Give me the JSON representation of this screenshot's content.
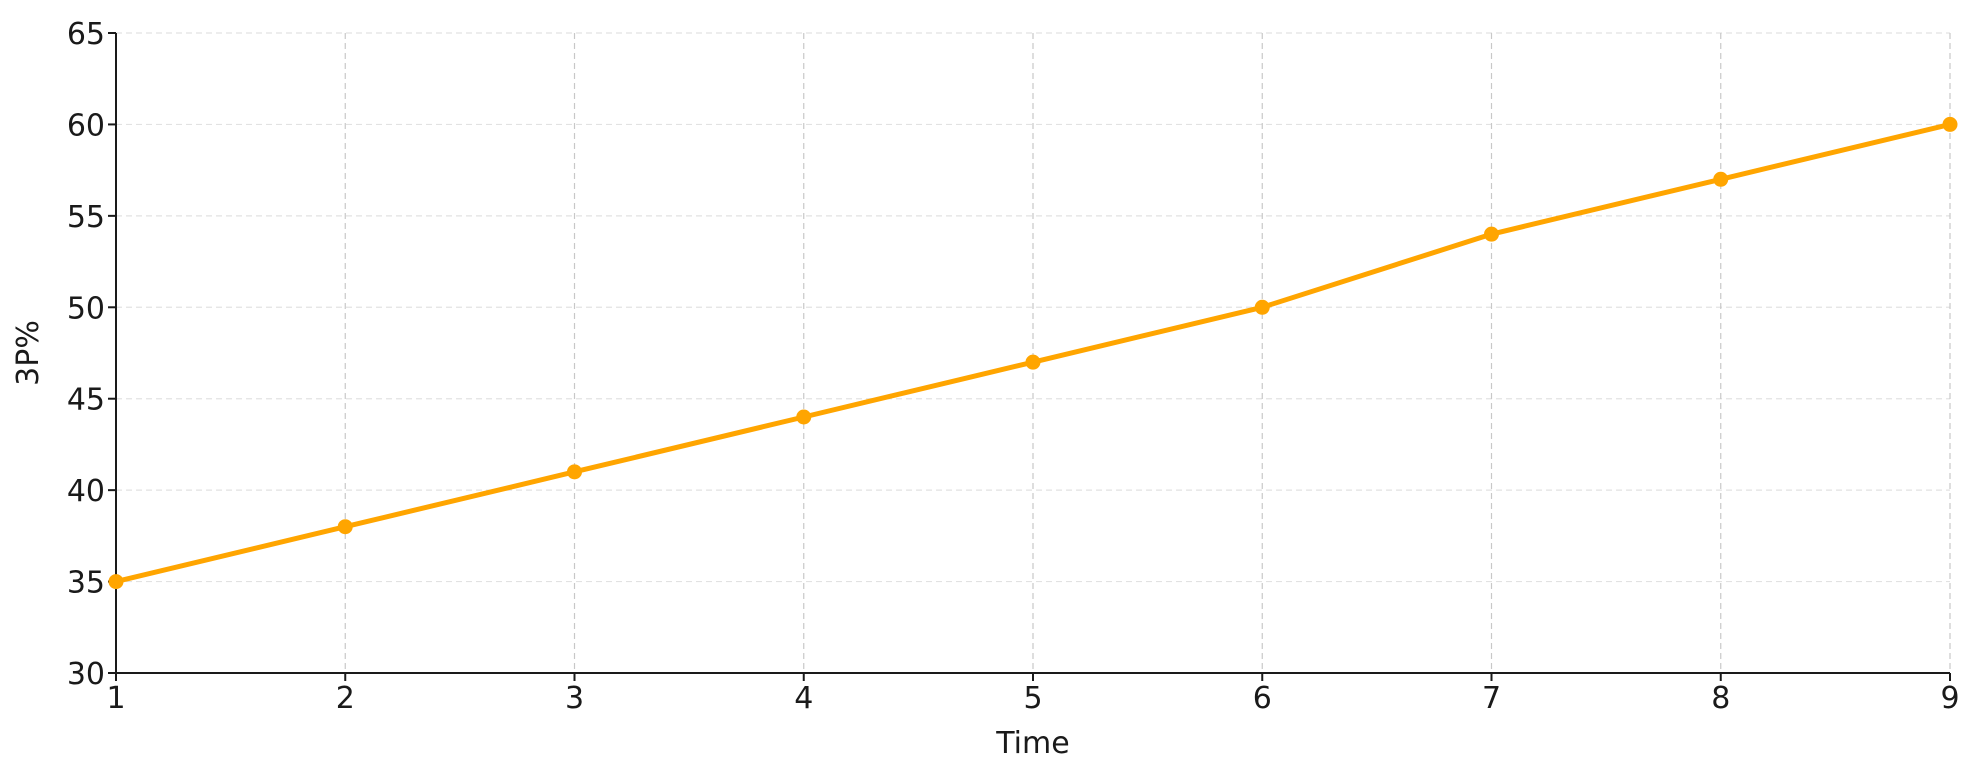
{
  "chart_data": {
    "type": "line",
    "title": "",
    "xlabel": "Time",
    "ylabel": "3P%",
    "x": [
      1,
      2,
      3,
      4,
      5,
      6,
      7,
      8,
      9
    ],
    "series": [
      {
        "values": [
          35,
          38,
          41,
          44,
          47,
          50,
          54,
          57,
          60
        ],
        "color": "#FFA500"
      }
    ],
    "xlim": [
      1,
      9
    ],
    "ylim": [
      30,
      65
    ],
    "xticks": [
      1,
      2,
      3,
      4,
      5,
      6,
      7,
      8,
      9
    ],
    "yticks": [
      30,
      35,
      40,
      45,
      50,
      55,
      60,
      65
    ],
    "grid": true,
    "legend": "none"
  }
}
